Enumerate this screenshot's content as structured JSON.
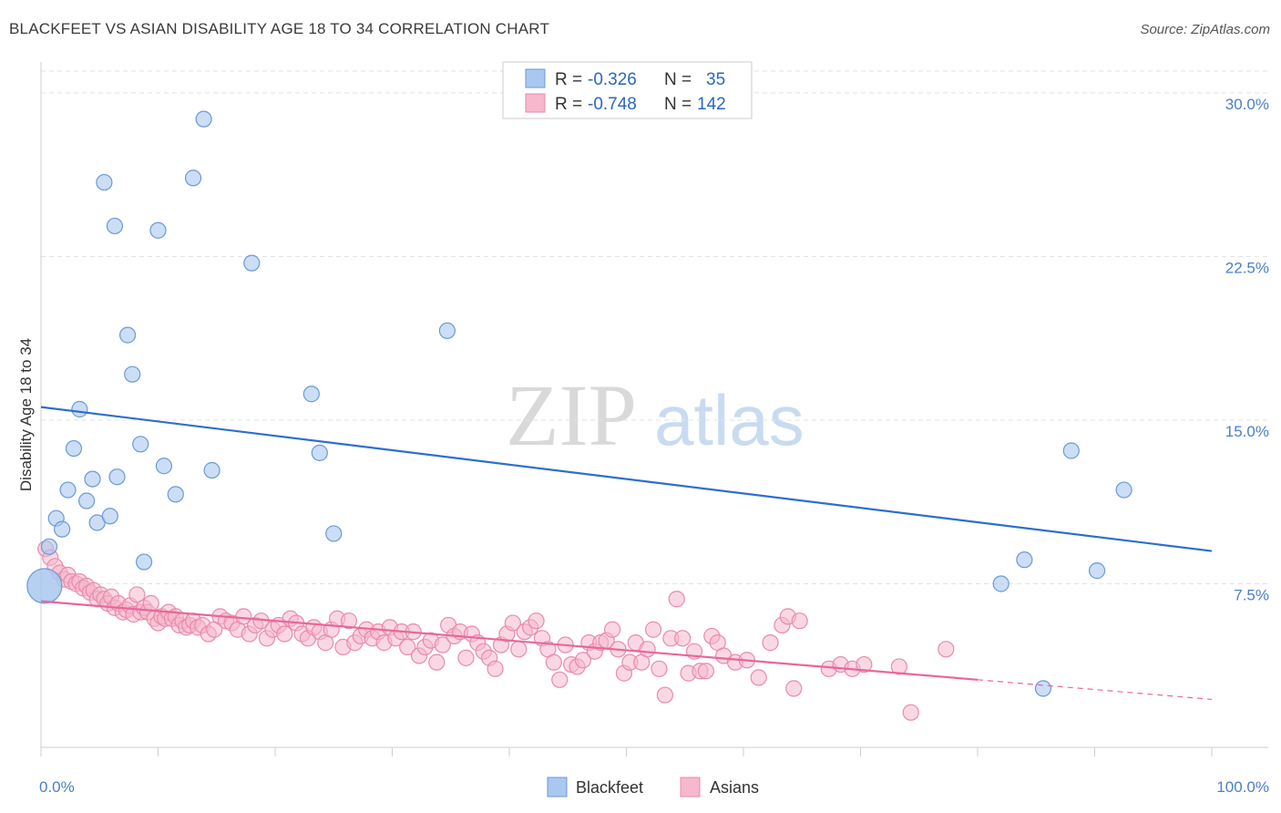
{
  "title": "BLACKFEET VS ASIAN DISABILITY AGE 18 TO 34 CORRELATION CHART",
  "source": "Source: ZipAtlas.com",
  "watermark": {
    "zip": "ZIP",
    "atlas": "atlas"
  },
  "colors": {
    "blackfeet_fill": "#a9c8ef",
    "blackfeet_stroke": "#6a9ad8",
    "blackfeet_line": "#2c6fd0",
    "asian_fill": "#f6b8cc",
    "asian_stroke": "#e98aab",
    "asian_line": "#e8679a",
    "grid": "#dde3ea",
    "tick_label": "#4a7fc8"
  },
  "legend": {
    "rows": [
      {
        "r_label": "R =",
        "r_value": "-0.326",
        "n_label": "N =",
        "n_value": "35"
      },
      {
        "r_label": "R =",
        "r_value": "-0.748",
        "n_label": "N =",
        "n_value": "142"
      }
    ]
  },
  "chart_data": {
    "type": "scatter",
    "title": "BLACKFEET VS ASIAN DISABILITY AGE 18 TO 34 CORRELATION CHART",
    "xlabel": "",
    "ylabel": "Disability Age 18 to 34",
    "xlim": [
      0,
      100
    ],
    "ylim": [
      0,
      31
    ],
    "x_tick_labels": [
      "0.0%",
      "100.0%"
    ],
    "y_ticks": [
      7.5,
      15.0,
      22.5,
      30.0
    ],
    "y_tick_labels": [
      "7.5%",
      "15.0%",
      "22.5%",
      "30.0%"
    ],
    "grid": true,
    "legend_placement": "top-center",
    "series": [
      {
        "name": "Blackfeet",
        "r": -0.326,
        "n": 35,
        "trend": {
          "x": [
            0,
            100
          ],
          "y": [
            15.6,
            9.0
          ]
        },
        "points": [
          [
            0.3,
            7.4
          ],
          [
            0.7,
            9.2
          ],
          [
            1.3,
            10.5
          ],
          [
            1.8,
            10.0
          ],
          [
            2.3,
            11.8
          ],
          [
            2.8,
            13.7
          ],
          [
            3.3,
            15.5
          ],
          [
            3.9,
            11.3
          ],
          [
            4.4,
            12.3
          ],
          [
            4.8,
            10.3
          ],
          [
            5.4,
            25.9
          ],
          [
            5.9,
            10.6
          ],
          [
            6.3,
            23.9
          ],
          [
            6.5,
            12.4
          ],
          [
            7.4,
            18.9
          ],
          [
            7.8,
            17.1
          ],
          [
            8.5,
            13.9
          ],
          [
            8.8,
            8.5
          ],
          [
            10.0,
            23.7
          ],
          [
            10.5,
            12.9
          ],
          [
            11.5,
            11.6
          ],
          [
            13.0,
            26.1
          ],
          [
            13.9,
            28.8
          ],
          [
            14.6,
            12.7
          ],
          [
            18.0,
            22.2
          ],
          [
            23.1,
            16.2
          ],
          [
            23.8,
            13.5
          ],
          [
            25.0,
            9.8
          ],
          [
            34.7,
            19.1
          ],
          [
            82.0,
            7.5
          ],
          [
            84.0,
            8.6
          ],
          [
            85.6,
            2.7
          ],
          [
            88.0,
            13.6
          ],
          [
            90.2,
            8.1
          ],
          [
            92.5,
            11.8
          ]
        ]
      },
      {
        "name": "Asians",
        "r": -0.748,
        "n": 142,
        "trend": {
          "x": [
            0,
            80
          ],
          "y": [
            6.7,
            3.1
          ]
        },
        "trend_extension": {
          "x": [
            80,
            100
          ],
          "y": [
            3.1,
            2.2
          ]
        },
        "points": [
          [
            0.4,
            9.1
          ],
          [
            0.8,
            8.7
          ],
          [
            1.2,
            8.3
          ],
          [
            1.6,
            8.0
          ],
          [
            2.0,
            7.7
          ],
          [
            2.3,
            7.9
          ],
          [
            2.6,
            7.6
          ],
          [
            3.0,
            7.5
          ],
          [
            3.3,
            7.6
          ],
          [
            3.6,
            7.3
          ],
          [
            3.9,
            7.4
          ],
          [
            4.2,
            7.1
          ],
          [
            4.5,
            7.2
          ],
          [
            4.8,
            6.8
          ],
          [
            5.1,
            7.0
          ],
          [
            5.4,
            6.8
          ],
          [
            5.7,
            6.6
          ],
          [
            6.0,
            6.9
          ],
          [
            6.3,
            6.4
          ],
          [
            6.6,
            6.6
          ],
          [
            7.0,
            6.2
          ],
          [
            7.3,
            6.3
          ],
          [
            7.6,
            6.5
          ],
          [
            7.9,
            6.1
          ],
          [
            8.2,
            7.0
          ],
          [
            8.5,
            6.2
          ],
          [
            8.8,
            6.4
          ],
          [
            9.1,
            6.2
          ],
          [
            9.4,
            6.6
          ],
          [
            9.7,
            5.9
          ],
          [
            10.0,
            5.7
          ],
          [
            10.3,
            6.0
          ],
          [
            10.6,
            5.9
          ],
          [
            10.9,
            6.2
          ],
          [
            11.2,
            5.9
          ],
          [
            11.5,
            6.0
          ],
          [
            11.8,
            5.6
          ],
          [
            12.1,
            5.8
          ],
          [
            12.4,
            5.5
          ],
          [
            12.7,
            5.6
          ],
          [
            13.0,
            5.8
          ],
          [
            13.4,
            5.5
          ],
          [
            13.8,
            5.6
          ],
          [
            14.3,
            5.2
          ],
          [
            14.8,
            5.4
          ],
          [
            15.3,
            6.0
          ],
          [
            15.8,
            5.8
          ],
          [
            16.3,
            5.7
          ],
          [
            16.8,
            5.4
          ],
          [
            17.3,
            6.0
          ],
          [
            17.8,
            5.2
          ],
          [
            18.3,
            5.6
          ],
          [
            18.8,
            5.8
          ],
          [
            19.3,
            5.0
          ],
          [
            19.8,
            5.4
          ],
          [
            20.3,
            5.6
          ],
          [
            20.8,
            5.2
          ],
          [
            21.3,
            5.9
          ],
          [
            21.8,
            5.7
          ],
          [
            22.3,
            5.2
          ],
          [
            22.8,
            5.0
          ],
          [
            23.3,
            5.5
          ],
          [
            23.8,
            5.3
          ],
          [
            24.3,
            4.8
          ],
          [
            24.8,
            5.4
          ],
          [
            25.3,
            5.9
          ],
          [
            25.8,
            4.6
          ],
          [
            26.3,
            5.8
          ],
          [
            26.8,
            4.8
          ],
          [
            27.3,
            5.1
          ],
          [
            27.8,
            5.4
          ],
          [
            28.3,
            5.0
          ],
          [
            28.8,
            5.3
          ],
          [
            29.3,
            4.8
          ],
          [
            29.8,
            5.5
          ],
          [
            30.3,
            5.0
          ],
          [
            30.8,
            5.3
          ],
          [
            31.3,
            4.6
          ],
          [
            31.8,
            5.3
          ],
          [
            32.3,
            4.2
          ],
          [
            32.8,
            4.6
          ],
          [
            33.3,
            4.9
          ],
          [
            33.8,
            3.9
          ],
          [
            34.3,
            4.7
          ],
          [
            34.8,
            5.6
          ],
          [
            35.3,
            5.1
          ],
          [
            35.8,
            5.3
          ],
          [
            36.3,
            4.1
          ],
          [
            36.8,
            5.2
          ],
          [
            37.3,
            4.8
          ],
          [
            37.8,
            4.4
          ],
          [
            38.3,
            4.1
          ],
          [
            38.8,
            3.6
          ],
          [
            39.3,
            4.7
          ],
          [
            39.8,
            5.2
          ],
          [
            40.3,
            5.7
          ],
          [
            40.8,
            4.5
          ],
          [
            41.3,
            5.3
          ],
          [
            41.8,
            5.5
          ],
          [
            42.3,
            5.8
          ],
          [
            42.8,
            5.0
          ],
          [
            43.3,
            4.5
          ],
          [
            43.8,
            3.9
          ],
          [
            44.3,
            3.1
          ],
          [
            44.8,
            4.7
          ],
          [
            45.3,
            3.8
          ],
          [
            45.8,
            3.7
          ],
          [
            46.3,
            4.0
          ],
          [
            46.8,
            4.8
          ],
          [
            47.3,
            4.4
          ],
          [
            47.8,
            4.8
          ],
          [
            48.3,
            4.9
          ],
          [
            48.8,
            5.4
          ],
          [
            49.3,
            4.5
          ],
          [
            49.8,
            3.4
          ],
          [
            50.3,
            3.9
          ],
          [
            50.8,
            4.8
          ],
          [
            51.3,
            3.9
          ],
          [
            51.8,
            4.5
          ],
          [
            52.3,
            5.4
          ],
          [
            52.8,
            3.6
          ],
          [
            53.3,
            2.4
          ],
          [
            53.8,
            5.0
          ],
          [
            54.3,
            6.8
          ],
          [
            54.8,
            5.0
          ],
          [
            55.3,
            3.4
          ],
          [
            55.8,
            4.4
          ],
          [
            56.3,
            3.5
          ],
          [
            56.8,
            3.5
          ],
          [
            57.3,
            5.1
          ],
          [
            57.8,
            4.8
          ],
          [
            58.3,
            4.2
          ],
          [
            59.3,
            3.9
          ],
          [
            60.3,
            4.0
          ],
          [
            61.3,
            3.2
          ],
          [
            62.3,
            4.8
          ],
          [
            63.3,
            5.6
          ],
          [
            63.8,
            6.0
          ],
          [
            64.3,
            2.7
          ],
          [
            64.8,
            5.8
          ],
          [
            67.3,
            3.6
          ],
          [
            68.3,
            3.8
          ],
          [
            69.3,
            3.6
          ],
          [
            70.3,
            3.8
          ],
          [
            73.3,
            3.7
          ],
          [
            74.3,
            1.6
          ],
          [
            77.3,
            4.5
          ]
        ]
      }
    ]
  },
  "bottom_legend": {
    "items": [
      "Blackfeet",
      "Asians"
    ]
  }
}
